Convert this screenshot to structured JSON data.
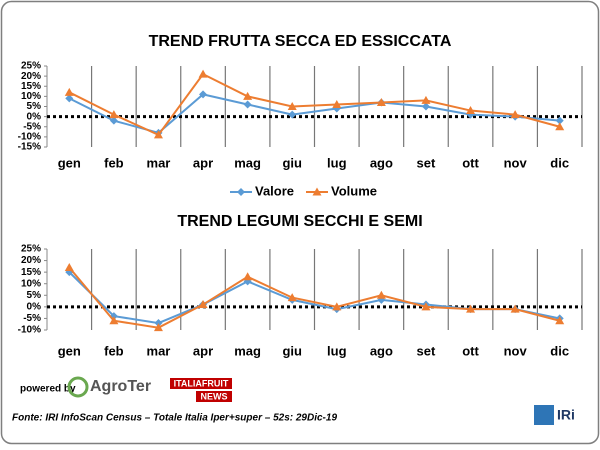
{
  "chart_data": [
    {
      "type": "line",
      "title": "TREND FRUTTA SECCA ED ESSICCATA",
      "categories": [
        "gen",
        "feb",
        "mar",
        "apr",
        "mag",
        "giu",
        "lug",
        "ago",
        "set",
        "ott",
        "nov",
        "dic"
      ],
      "series": [
        {
          "name": "Valore",
          "color": "#5b9bd5",
          "marker": "diamond",
          "values": [
            9,
            -2,
            -8,
            11,
            6,
            1,
            4,
            7,
            5,
            1,
            0,
            -2
          ]
        },
        {
          "name": "Volume",
          "color": "#ed7d31",
          "marker": "triangle",
          "values": [
            12,
            1,
            -9,
            21,
            10,
            5,
            6,
            7,
            8,
            3,
            1,
            -5
          ]
        }
      ],
      "ylim": [
        -15,
        25
      ],
      "yticks": [
        {
          "value": -15,
          "label": "-15%"
        },
        {
          "value": -10,
          "label": "-10%"
        },
        {
          "value": -5,
          "label": "-5%"
        },
        {
          "value": 0,
          "label": "0%"
        },
        {
          "value": 5,
          "label": "5%"
        },
        {
          "value": 10,
          "label": "10%"
        },
        {
          "value": 15,
          "label": "15%"
        },
        {
          "value": 20,
          "label": "20%"
        },
        {
          "value": 25,
          "label": "25%"
        }
      ],
      "x_grid": true,
      "zero_line": true,
      "legend": "bottom"
    },
    {
      "type": "line",
      "title": "TREND LEGUMI SECCHI E SEMI",
      "categories": [
        "gen",
        "feb",
        "mar",
        "apr",
        "mag",
        "giu",
        "lug",
        "ago",
        "set",
        "ott",
        "nov",
        "dic"
      ],
      "series": [
        {
          "color": "#5b9bd5",
          "marker": "diamond",
          "values": [
            15,
            -4,
            -7,
            1,
            11,
            3,
            -1,
            3,
            1,
            -1,
            -1,
            -5
          ]
        },
        {
          "color": "#ed7d31",
          "marker": "triangle",
          "values": [
            17,
            -6,
            -9,
            1,
            13,
            4,
            0,
            5,
            0,
            -1,
            -1,
            -6
          ]
        }
      ],
      "ylim": [
        -10,
        25
      ],
      "yticks": [
        {
          "value": -10,
          "label": "-10%"
        },
        {
          "value": -5,
          "label": "-5%"
        },
        {
          "value": 0,
          "label": "0%"
        },
        {
          "value": 5,
          "label": "5%"
        },
        {
          "value": 10,
          "label": "10%"
        },
        {
          "value": 15,
          "label": "15%"
        },
        {
          "value": 20,
          "label": "20%"
        },
        {
          "value": 25,
          "label": "25%"
        }
      ],
      "x_grid": true,
      "zero_line": true
    }
  ],
  "footer": {
    "powered_by": "powered by",
    "logo_agroter": "AgroTer",
    "logo_italiafruit": "ITALIAFRUIT",
    "logo_news": "NEWS",
    "logo_iri": "IRi",
    "source": "Fonte: IRI InfoScan Census – Totale Italia Iper+super – 52s: 29Dic-19"
  }
}
